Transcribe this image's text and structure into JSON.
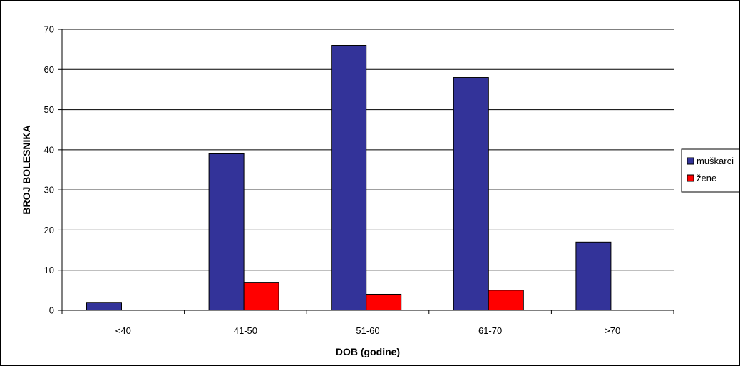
{
  "chart_data": {
    "type": "bar",
    "title": "",
    "xlabel": "DOB (godine)",
    "ylabel": "BROJ BOLESNIKA",
    "categories": [
      "<40",
      "41-50",
      "51-60",
      "61-70",
      ">70"
    ],
    "ylim": [
      0,
      70
    ],
    "yticks": [
      0,
      10,
      20,
      30,
      40,
      50,
      60,
      70
    ],
    "grid": "horizontal",
    "legend_position": "right",
    "series": [
      {
        "name": "muškarci",
        "color": "#333399",
        "values": [
          2,
          39,
          66,
          58,
          17
        ]
      },
      {
        "name": "žene",
        "color": "#ff0000",
        "values": [
          0,
          7,
          4,
          5,
          0
        ]
      }
    ]
  }
}
